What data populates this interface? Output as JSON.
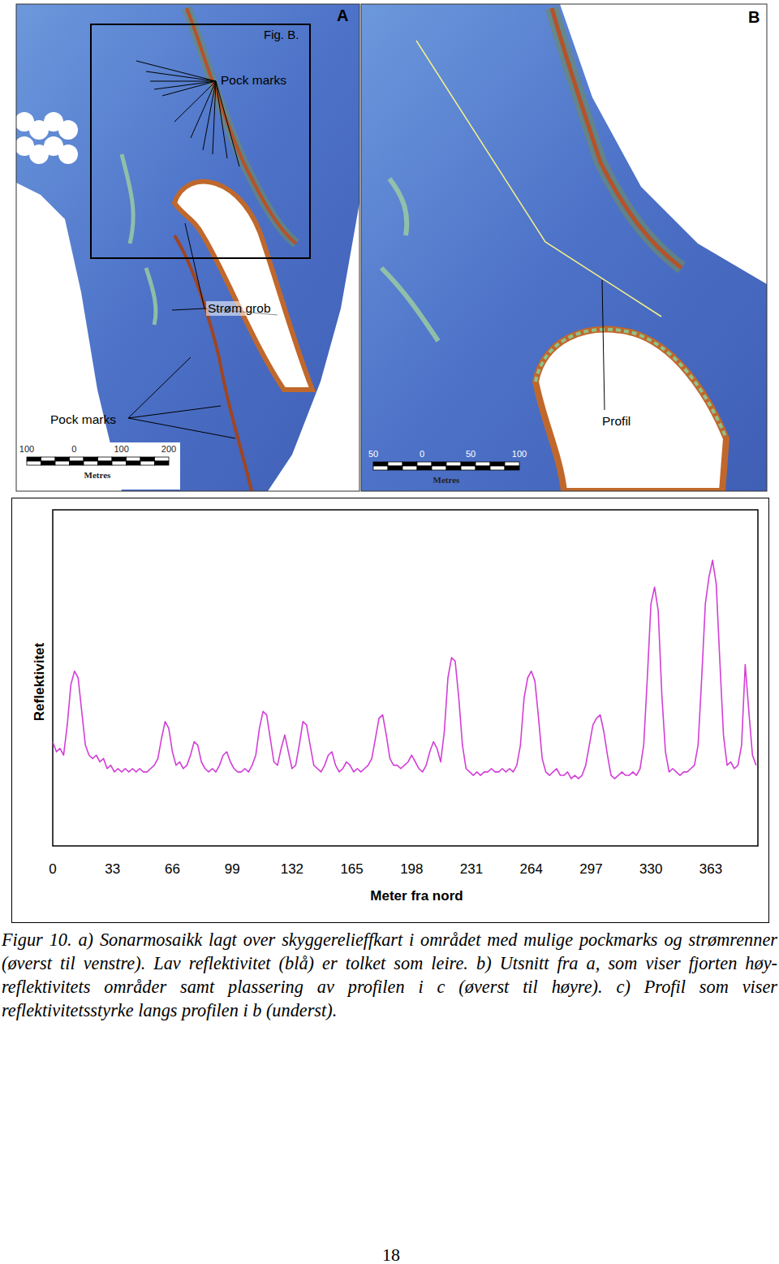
{
  "chart_data": {
    "type": "line",
    "x_label": "Meter fra nord",
    "y_label": "Reflektivitet",
    "color": "#d23fd6",
    "xlim": [
      0,
      389
    ],
    "xticks": [
      0,
      33,
      66,
      99,
      132,
      165,
      198,
      231,
      264,
      297,
      330,
      363
    ],
    "ylim": [
      0,
      100
    ],
    "tick_labels": "x",
    "x": [
      0,
      2,
      4,
      6,
      8,
      10,
      12,
      14,
      16,
      18,
      20,
      22,
      24,
      26,
      28,
      30,
      32,
      34,
      36,
      38,
      40,
      42,
      44,
      46,
      48,
      50,
      52,
      54,
      56,
      58,
      60,
      62,
      64,
      66,
      68,
      70,
      72,
      74,
      76,
      78,
      80,
      82,
      84,
      86,
      88,
      90,
      92,
      94,
      96,
      98,
      100,
      102,
      104,
      106,
      108,
      110,
      112,
      114,
      116,
      118,
      120,
      122,
      124,
      126,
      128,
      130,
      132,
      134,
      136,
      138,
      140,
      142,
      144,
      146,
      148,
      150,
      152,
      154,
      156,
      158,
      160,
      162,
      164,
      166,
      168,
      170,
      172,
      174,
      176,
      178,
      180,
      182,
      184,
      186,
      188,
      190,
      192,
      194,
      196,
      198,
      200,
      202,
      204,
      206,
      208,
      210,
      212,
      214,
      216,
      218,
      220,
      222,
      224,
      226,
      228,
      230,
      232,
      234,
      236,
      238,
      240,
      242,
      244,
      246,
      248,
      250,
      252,
      254,
      256,
      258,
      260,
      262,
      264,
      266,
      268,
      270,
      272,
      274,
      276,
      278,
      280,
      282,
      284,
      286,
      288,
      290,
      292,
      294,
      296,
      298,
      300,
      302,
      304,
      306,
      308,
      310,
      312,
      314,
      316,
      318,
      320,
      322,
      324,
      326,
      328,
      330,
      332,
      334,
      336,
      338,
      340,
      342,
      344,
      346,
      348,
      350,
      352,
      354,
      356,
      358,
      360,
      362,
      364,
      366,
      368,
      370,
      372,
      374,
      376,
      378,
      380,
      382,
      384,
      386,
      388
    ],
    "values": [
      31,
      28,
      29,
      27,
      36,
      48,
      52,
      50,
      40,
      30,
      27,
      26,
      27,
      25,
      26,
      23,
      24,
      22,
      23,
      22,
      23,
      22,
      23,
      22,
      23,
      22,
      22,
      23,
      24,
      26,
      32,
      37,
      35,
      28,
      24,
      25,
      23,
      24,
      27,
      31,
      30,
      25,
      23,
      22,
      23,
      22,
      24,
      27,
      28,
      25,
      23,
      22,
      22,
      23,
      22,
      24,
      27,
      35,
      40,
      39,
      32,
      25,
      24,
      29,
      33,
      28,
      23,
      24,
      30,
      37,
      36,
      30,
      24,
      23,
      22,
      24,
      27,
      28,
      24,
      22,
      23,
      25,
      24,
      22,
      23,
      22,
      23,
      24,
      26,
      32,
      38,
      39,
      33,
      26,
      24,
      24,
      23,
      24,
      25,
      27,
      25,
      23,
      22,
      24,
      28,
      31,
      29,
      25,
      34,
      50,
      56,
      55,
      44,
      30,
      23,
      22,
      21,
      22,
      21,
      22,
      22,
      23,
      22,
      22,
      23,
      22,
      23,
      22,
      24,
      30,
      44,
      50,
      52,
      49,
      38,
      26,
      22,
      21,
      22,
      23,
      21,
      21,
      22,
      20,
      21,
      20,
      21,
      24,
      30,
      36,
      38,
      39,
      34,
      27,
      21,
      20,
      21,
      22,
      21,
      21,
      22,
      21,
      23,
      30,
      50,
      72,
      77,
      70,
      45,
      28,
      22,
      23,
      22,
      21,
      22,
      22,
      23,
      24,
      30,
      50,
      72,
      80,
      85,
      78,
      55,
      33,
      24,
      25,
      23,
      24,
      30,
      54,
      40,
      27,
      24
    ]
  },
  "panels": [
    {
      "label": "A",
      "inset_label": "Fig. B.",
      "annotations": [
        "Pock marks",
        "Strøm grob",
        "Pock marks"
      ],
      "scale_ticks": [
        100,
        0,
        100,
        200
      ],
      "scale_unit": "Metres"
    },
    {
      "label": "B",
      "annotations": [
        "Profil"
      ],
      "scale_ticks": [
        50,
        0,
        50,
        100
      ],
      "scale_unit": "Metres"
    }
  ],
  "caption": "Figur 10. a) Sonarmosaikk lagt over skyggerelieffkart i området med mulige pockmarks og strømrenner (øverst til venstre). Lav reflektivitet (blå) er tolket som leire. b) Utsnitt fra a, som viser fjorten høy-reflektivitets områder samt plassering av profilen i c (øverst til høyre). c) Profil som viser reflektivitetsstyrke langs profilen i b (underst).",
  "page_number": 18
}
